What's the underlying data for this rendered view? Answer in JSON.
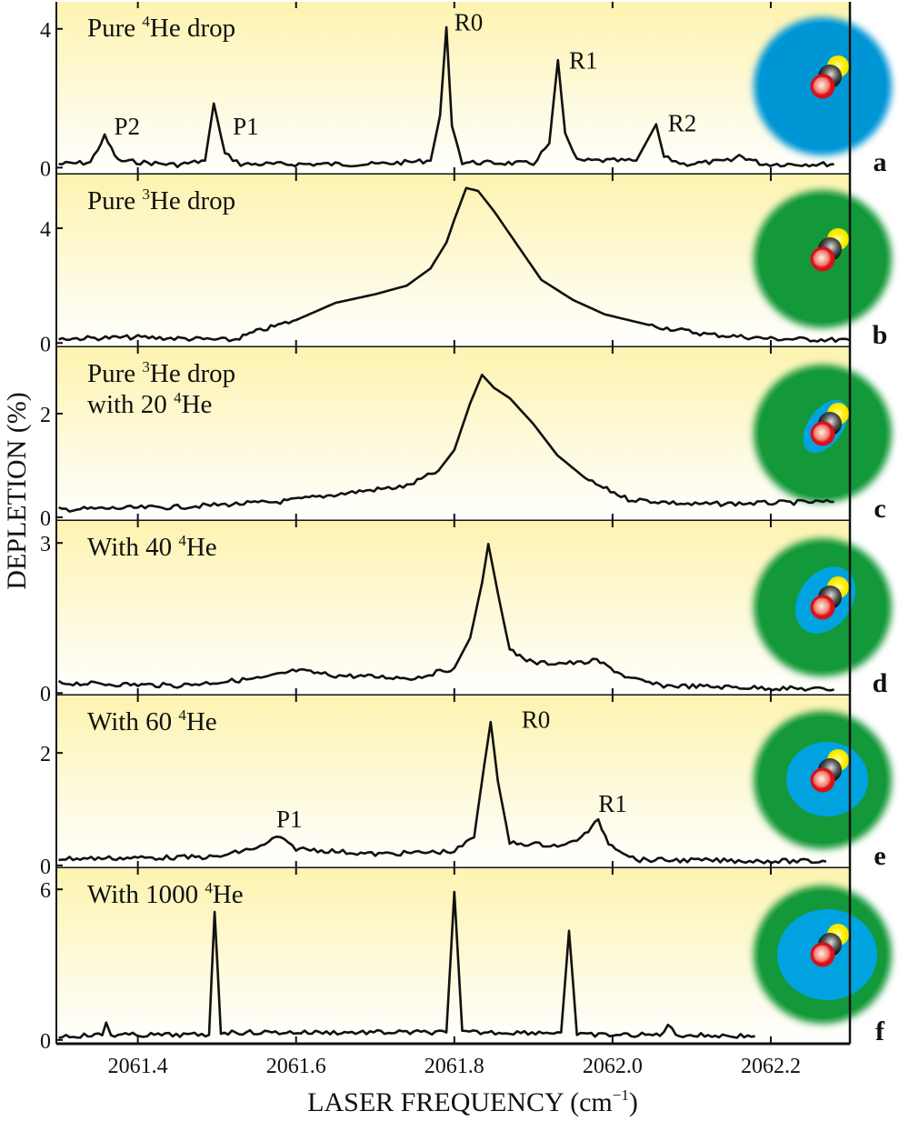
{
  "chart_data": {
    "type": "line",
    "xlabel": "LASER FREQUENCY (cm",
    "xlabel_sup": "−1",
    "xlabel_end": ")",
    "ylabel": "DEPLETION (%)",
    "xlim": [
      2061.297,
      2062.3
    ],
    "xticks": [
      2061.4,
      2061.6,
      2061.8,
      2062.0,
      2062.2
    ],
    "xtick_labels": [
      "2061.4",
      "2061.6",
      "2061.8",
      "2062.0",
      "2062.2"
    ],
    "background": {
      "top": "#fdf3b0",
      "bottom": "#ffffff"
    },
    "line_color": "#111111",
    "colors": {
      "he4": "#0096d6",
      "he3": "#13993a",
      "inner_he4": "#00a3e0"
    },
    "panels": [
      {
        "letter": "a",
        "title": {
          "pre": "Pure ",
          "sup": "4",
          "post": "He drop"
        },
        "title2": null,
        "ylim": [
          -0.2,
          4.78
        ],
        "yticks": [
          0,
          4
        ],
        "ytick_labels": [
          "0",
          "4"
        ],
        "drop": {
          "outer": "#0096d6",
          "inner": null
        },
        "points": [
          [
            2061.3,
            0.1
          ],
          [
            2061.34,
            0.15
          ],
          [
            2061.358,
            0.9
          ],
          [
            2061.375,
            0.2
          ],
          [
            2061.45,
            0.08
          ],
          [
            2061.485,
            0.2
          ],
          [
            2061.496,
            1.85
          ],
          [
            2061.51,
            0.4
          ],
          [
            2061.53,
            0.1
          ],
          [
            2061.7,
            0.1
          ],
          [
            2061.77,
            0.2
          ],
          [
            2061.782,
            1.5
          ],
          [
            2061.79,
            4.05
          ],
          [
            2061.797,
            1.2
          ],
          [
            2061.81,
            0.15
          ],
          [
            2061.9,
            0.12
          ],
          [
            2061.92,
            0.7
          ],
          [
            2061.931,
            3.1
          ],
          [
            2061.94,
            1.0
          ],
          [
            2061.955,
            0.2
          ],
          [
            2062.03,
            0.2
          ],
          [
            2062.055,
            1.25
          ],
          [
            2062.065,
            0.3
          ],
          [
            2062.09,
            0.1
          ],
          [
            2062.15,
            0.2
          ],
          [
            2062.16,
            0.35
          ],
          [
            2062.19,
            0.1
          ],
          [
            2062.28,
            0.1
          ]
        ],
        "peak_labels": [
          {
            "text": "P2",
            "x": 2061.37,
            "y": 0.95
          },
          {
            "text": "P1",
            "x": 2061.52,
            "y": 0.95
          },
          {
            "text": "R0",
            "x": 2061.8,
            "y": 3.95
          },
          {
            "text": "R1",
            "x": 2061.945,
            "y": 2.85
          },
          {
            "text": "R2",
            "x": 2062.07,
            "y": 1.05
          }
        ]
      },
      {
        "letter": "b",
        "title": {
          "pre": "Pure ",
          "sup": "3",
          "post": "He drop"
        },
        "title2": null,
        "ylim": [
          -0.15,
          5.87
        ],
        "yticks": [
          0,
          4
        ],
        "ytick_labels": [
          "0",
          "4"
        ],
        "drop": {
          "outer": "#13993a",
          "inner": null
        },
        "points": [
          [
            2061.3,
            0.15
          ],
          [
            2061.4,
            0.2
          ],
          [
            2061.52,
            0.1
          ],
          [
            2061.55,
            0.4
          ],
          [
            2061.6,
            0.8
          ],
          [
            2061.65,
            1.4
          ],
          [
            2061.7,
            1.7
          ],
          [
            2061.74,
            2.0
          ],
          [
            2061.77,
            2.6
          ],
          [
            2061.79,
            3.5
          ],
          [
            2061.8,
            4.3
          ],
          [
            2061.815,
            5.4
          ],
          [
            2061.83,
            5.3
          ],
          [
            2061.85,
            4.6
          ],
          [
            2061.88,
            3.4
          ],
          [
            2061.91,
            2.2
          ],
          [
            2061.95,
            1.5
          ],
          [
            2061.99,
            1.0
          ],
          [
            2062.05,
            0.6
          ],
          [
            2062.12,
            0.3
          ],
          [
            2062.2,
            0.15
          ],
          [
            2062.3,
            0.1
          ]
        ],
        "peak_labels": []
      },
      {
        "letter": "c",
        "title": {
          "pre": "Pure ",
          "sup": "3",
          "post": "He drop"
        },
        "title2": {
          "pre": "with 20 ",
          "sup": "4",
          "post": "He"
        },
        "ylim": [
          -0.07,
          3.28
        ],
        "yticks": [
          0,
          2
        ],
        "ytick_labels": [
          "0",
          "2"
        ],
        "drop": {
          "outer": "#13993a",
          "inner": "small-ellipse"
        },
        "points": [
          [
            2061.3,
            0.15
          ],
          [
            2061.45,
            0.2
          ],
          [
            2061.58,
            0.3
          ],
          [
            2061.68,
            0.5
          ],
          [
            2061.74,
            0.6
          ],
          [
            2061.78,
            0.9
          ],
          [
            2061.8,
            1.3
          ],
          [
            2061.82,
            2.2
          ],
          [
            2061.835,
            2.75
          ],
          [
            2061.85,
            2.5
          ],
          [
            2061.87,
            2.3
          ],
          [
            2061.9,
            1.8
          ],
          [
            2061.93,
            1.2
          ],
          [
            2061.97,
            0.7
          ],
          [
            2062.02,
            0.35
          ],
          [
            2062.1,
            0.25
          ],
          [
            2062.28,
            0.3
          ]
        ],
        "peak_labels": []
      },
      {
        "letter": "d",
        "title": {
          "pre": "With 40 ",
          "sup": "4",
          "post": "He"
        },
        "title2": null,
        "ylim": [
          -0.05,
          3.44
        ],
        "yticks": [
          0,
          3
        ],
        "ytick_labels": [
          "0",
          "3"
        ],
        "drop": {
          "outer": "#13993a",
          "inner": "large-ellipse"
        },
        "points": [
          [
            2061.3,
            0.2
          ],
          [
            2061.45,
            0.15
          ],
          [
            2061.56,
            0.3
          ],
          [
            2061.6,
            0.45
          ],
          [
            2061.65,
            0.35
          ],
          [
            2061.75,
            0.3
          ],
          [
            2061.8,
            0.5
          ],
          [
            2061.82,
            1.1
          ],
          [
            2061.835,
            2.2
          ],
          [
            2061.843,
            2.98
          ],
          [
            2061.855,
            2.0
          ],
          [
            2061.87,
            0.85
          ],
          [
            2061.9,
            0.6
          ],
          [
            2061.96,
            0.6
          ],
          [
            2061.98,
            0.65
          ],
          [
            2062.02,
            0.3
          ],
          [
            2062.06,
            0.15
          ],
          [
            2062.28,
            0.07
          ]
        ],
        "peak_labels": []
      },
      {
        "letter": "e",
        "title": {
          "pre": "With 60 ",
          "sup": "4",
          "post": "He"
        },
        "title2": null,
        "ylim": [
          -0.05,
          3.02
        ],
        "yticks": [
          0,
          2
        ],
        "ytick_labels": [
          "0",
          "2"
        ],
        "drop": {
          "outer": "#13993a",
          "inner": "circle"
        },
        "points": [
          [
            2061.3,
            0.12
          ],
          [
            2061.5,
            0.15
          ],
          [
            2061.56,
            0.35
          ],
          [
            2061.575,
            0.52
          ],
          [
            2061.6,
            0.3
          ],
          [
            2061.7,
            0.2
          ],
          [
            2061.8,
            0.25
          ],
          [
            2061.825,
            0.5
          ],
          [
            2061.838,
            1.8
          ],
          [
            2061.846,
            2.55
          ],
          [
            2061.855,
            1.5
          ],
          [
            2061.87,
            0.4
          ],
          [
            2061.94,
            0.35
          ],
          [
            2061.965,
            0.55
          ],
          [
            2061.982,
            0.8
          ],
          [
            2061.995,
            0.4
          ],
          [
            2062.03,
            0.1
          ],
          [
            2062.27,
            0.07
          ]
        ],
        "peak_labels": [
          {
            "text": "P1",
            "x": 2061.575,
            "y": 0.68
          },
          {
            "text": "R0",
            "x": 2061.885,
            "y": 2.45
          },
          {
            "text": "R1",
            "x": 2061.982,
            "y": 0.95
          }
        ]
      },
      {
        "letter": "f",
        "title": {
          "pre": "With 1000 ",
          "sup": "4",
          "post": "He"
        },
        "title2": null,
        "ylim": [
          -0.15,
          6.84
        ],
        "yticks": [
          0,
          6
        ],
        "ytick_labels": [
          "0",
          "6"
        ],
        "drop": {
          "outer": "#13993a",
          "inner": "large-circle"
        },
        "points": [
          [
            2061.3,
            0.15
          ],
          [
            2061.355,
            0.2
          ],
          [
            2061.36,
            0.7
          ],
          [
            2061.366,
            0.2
          ],
          [
            2061.49,
            0.2
          ],
          [
            2061.497,
            5.1
          ],
          [
            2061.505,
            0.3
          ],
          [
            2061.79,
            0.3
          ],
          [
            2061.8,
            5.9
          ],
          [
            2061.81,
            0.3
          ],
          [
            2061.935,
            0.3
          ],
          [
            2061.945,
            4.35
          ],
          [
            2061.955,
            0.2
          ],
          [
            2062.06,
            0.2
          ],
          [
            2062.07,
            0.6
          ],
          [
            2062.08,
            0.2
          ],
          [
            2062.18,
            0.15
          ]
        ],
        "peak_labels": []
      }
    ]
  }
}
